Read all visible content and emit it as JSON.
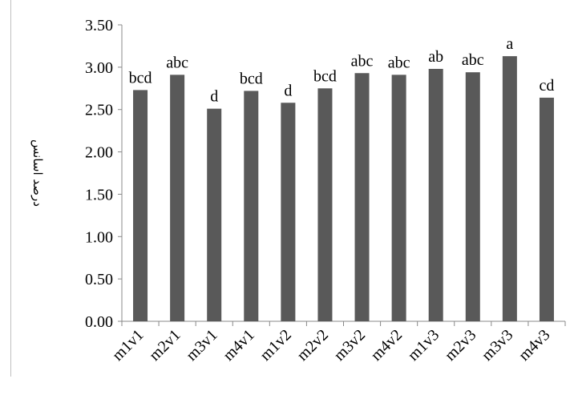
{
  "chart_data": {
    "type": "bar",
    "title": "",
    "xlabel": "",
    "ylabel": "درصد اسانس",
    "ylim": [
      0,
      3.5
    ],
    "yticks": [
      "0.00",
      "0.50",
      "1.00",
      "1.50",
      "2.00",
      "2.50",
      "3.00",
      "3.50"
    ],
    "grid": false,
    "legend": "none",
    "bar_color": "#595959",
    "categories": [
      "m1v1",
      "m2v1",
      "m3v1",
      "m4v1",
      "m1v2",
      "m2v2",
      "m3v2",
      "m4v2",
      "m1v3",
      "m2v3",
      "m3v3",
      "m4v3"
    ],
    "values": [
      2.73,
      2.91,
      2.51,
      2.72,
      2.58,
      2.75,
      2.93,
      2.91,
      2.98,
      2.94,
      3.13,
      2.64
    ],
    "labels": [
      "bcd",
      "abc",
      "d",
      "bcd",
      "d",
      "bcd",
      "abc",
      "abc",
      "ab",
      "abc",
      "a",
      "cd"
    ]
  }
}
